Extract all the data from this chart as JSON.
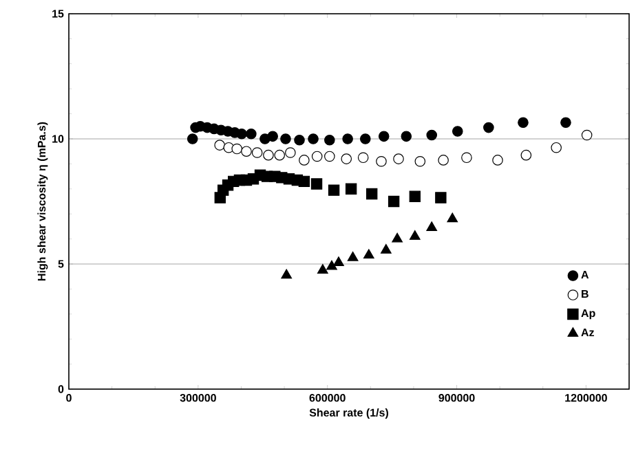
{
  "chart_data": {
    "type": "scatter",
    "xlabel": "Shear rate (1/s)",
    "ylabel": "High shear viscosity η (mPa.s)",
    "xlim": [
      0,
      1300000
    ],
    "xticks": [
      0,
      300000,
      600000,
      900000,
      1200000
    ],
    "ylim": [
      0,
      15
    ],
    "yticks": [
      0,
      5,
      10,
      15
    ],
    "grid": "y",
    "legend": "right",
    "series": [
      {
        "name": "A",
        "color": "#000000",
        "marker": "circle",
        "x": [
          287000,
          294000,
          305000,
          321000,
          337000,
          353000,
          369000,
          385000,
          401000,
          423000,
          455000,
          473000,
          503000,
          535000,
          567000,
          605000,
          647000,
          688000,
          731000,
          783000,
          842000,
          902000,
          974000,
          1054000,
          1153000
        ],
        "values": [
          10.0,
          10.45,
          10.5,
          10.45,
          10.4,
          10.35,
          10.3,
          10.25,
          10.2,
          10.2,
          10.0,
          10.1,
          10.0,
          9.95,
          10.0,
          9.95,
          10.0,
          10.0,
          10.1,
          10.1,
          10.15,
          10.3,
          10.45,
          10.65,
          10.65
        ]
      },
      {
        "name": "B",
        "color": "#ffffff",
        "marker": "circle",
        "x": [
          350000,
          371000,
          390000,
          412000,
          437000,
          463000,
          489000,
          514000,
          546000,
          576000,
          605000,
          644000,
          683000,
          725000,
          765000,
          815000,
          869000,
          923000,
          995000,
          1061000,
          1131000,
          1202000
        ],
        "values": [
          9.75,
          9.65,
          9.6,
          9.5,
          9.45,
          9.35,
          9.35,
          9.45,
          9.15,
          9.3,
          9.3,
          9.2,
          9.25,
          9.1,
          9.2,
          9.1,
          9.15,
          9.25,
          9.15,
          9.35,
          9.65,
          10.15
        ]
      },
      {
        "name": "Ap",
        "color": "#000000",
        "marker": "square",
        "x": [
          351000,
          358000,
          369000,
          382000,
          396000,
          412000,
          428000,
          444000,
          460000,
          478000,
          494000,
          511000,
          530000,
          546000,
          575000,
          615000,
          655000,
          703000,
          754000,
          803000,
          863000
        ],
        "values": [
          7.65,
          7.95,
          8.15,
          8.3,
          8.35,
          8.35,
          8.4,
          8.55,
          8.5,
          8.5,
          8.45,
          8.4,
          8.35,
          8.3,
          8.2,
          7.95,
          8.0,
          7.8,
          7.5,
          7.7,
          7.65
        ]
      },
      {
        "name": "Az",
        "color": "#000000",
        "marker": "triangle",
        "x": [
          505000,
          589000,
          610000,
          626000,
          659000,
          696000,
          736000,
          762000,
          803000,
          842000,
          890000
        ],
        "values": [
          4.55,
          4.75,
          4.9,
          5.05,
          5.25,
          5.35,
          5.55,
          6.0,
          6.1,
          6.45,
          6.8
        ]
      }
    ]
  }
}
